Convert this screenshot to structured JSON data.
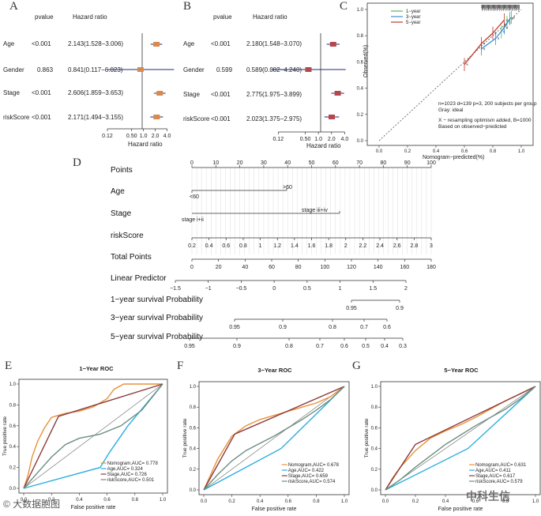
{
  "panels": {
    "A": "A",
    "B": "B",
    "C": "C",
    "D": "D",
    "E": "E",
    "F": "F",
    "G": "G"
  },
  "forest": {
    "pvalue_header": "pvalue",
    "hr_header": "Hazard ratio",
    "xlabel": "Hazard ratio",
    "ticks": [
      "0.12",
      "0.50",
      "1.0",
      "2.0",
      "4.0"
    ],
    "A": {
      "color": "#d9894e",
      "rows": [
        {
          "name": "Age",
          "p": "<0.001",
          "hr": "2.143(1.528−3.006)",
          "est": 2.143,
          "lo": 1.528,
          "hi": 3.006
        },
        {
          "name": "Gender",
          "p": "0.863",
          "hr": "0.841(0.117−6.023)",
          "est": 0.841,
          "lo": 0.117,
          "hi": 6.023
        },
        {
          "name": "Stage",
          "p": "<0.001",
          "hr": "2.606(1.859−3.653)",
          "est": 2.606,
          "lo": 1.859,
          "hi": 3.653
        },
        {
          "name": "riskScore",
          "p": "<0.001",
          "hr": "2.171(1.494−3.155)",
          "est": 2.171,
          "lo": 1.494,
          "hi": 3.155
        }
      ]
    },
    "B": {
      "color": "#b5474d",
      "rows": [
        {
          "name": "Age",
          "p": "<0.001",
          "hr": "2.180(1.548−3.070)",
          "est": 2.18,
          "lo": 1.548,
          "hi": 3.07
        },
        {
          "name": "Gender",
          "p": "0.599",
          "hr": "0.589(0.082−4.240)",
          "est": 0.589,
          "lo": 0.082,
          "hi": 4.24
        },
        {
          "name": "Stage",
          "p": "<0.001",
          "hr": "2.775(1.975−3.899)",
          "est": 2.775,
          "lo": 1.975,
          "hi": 3.899
        },
        {
          "name": "riskScore",
          "p": "<0.001",
          "hr": "2.023(1.375−2.975)",
          "est": 2.023,
          "lo": 1.375,
          "hi": 2.975
        }
      ]
    }
  },
  "calibration": {
    "xlabel": "Nomogram−predicted(%)",
    "ylabel": "Observed(%)",
    "xticks": [
      "0.0",
      "0.2",
      "0.4",
      "0.6",
      "0.8",
      "1.0"
    ],
    "yticks": [
      "0.0",
      "0.2",
      "0.4",
      "0.6",
      "0.8",
      "1.0"
    ],
    "legend": [
      {
        "label": "1−year",
        "color": "#5ab84f"
      },
      {
        "label": "3−year",
        "color": "#3a8fd8"
      },
      {
        "label": "5−year",
        "color": "#c0392b"
      }
    ],
    "note1": "n=1023 d=139 p=3, 200 subjects per group",
    "note2": "Gray: ideal",
    "note3": "X − resampling optimism added, B=1000",
    "note4": "Based on observed−predicted"
  },
  "nomogram": {
    "rows": [
      {
        "label": "Points",
        "ticks": [
          "0",
          "10",
          "20",
          "30",
          "40",
          "50",
          "60",
          "70",
          "80",
          "90",
          "100"
        ]
      },
      {
        "label": "Age",
        "levels": [
          ">60",
          "<60"
        ]
      },
      {
        "label": "Stage",
        "levels": [
          "stage iii+iv",
          "stage i+ii"
        ]
      },
      {
        "label": "riskScore",
        "ticks": [
          "0.2",
          "0.4",
          "0.6",
          "0.8",
          "1",
          "1.2",
          "1.4",
          "1.6",
          "1.8",
          "2",
          "2.2",
          "2.4",
          "2.6",
          "2.8",
          "3"
        ]
      },
      {
        "label": "Total Points",
        "ticks": [
          "0",
          "20",
          "40",
          "60",
          "80",
          "100",
          "120",
          "140",
          "160",
          "180"
        ]
      },
      {
        "label": "Linear Predictor",
        "ticks": [
          "−1.5",
          "−1",
          "−0.5",
          "0",
          "0.5",
          "1",
          "1.5",
          "2"
        ]
      },
      {
        "label": "1−year survival Probability",
        "ticks": [
          "0.95",
          "0.9"
        ]
      },
      {
        "label": "3−year survival Probability",
        "ticks": [
          "0.95",
          "0.9",
          "0.8",
          "0.7",
          "0.6"
        ]
      },
      {
        "label": "5−year survival Probability",
        "ticks": [
          "0.95",
          "0.9",
          "0.8",
          "0.7",
          "0.6",
          "0.5",
          "0.4",
          "0.3"
        ]
      }
    ]
  },
  "chart_data": [
    {
      "type": "line",
      "title": "1−Year ROC",
      "xlabel": "False positive rate",
      "ylabel": "True positive rate",
      "xlim": [
        0,
        1
      ],
      "ylim": [
        0,
        1
      ],
      "ticks": [
        "0.0",
        "0.2",
        "0.4",
        "0.6",
        "0.8",
        "1.0"
      ],
      "series": [
        {
          "name": "Nomogram,AUC= 0.778",
          "color": "#e8913a",
          "x": [
            0,
            0.03,
            0.06,
            0.1,
            0.15,
            0.2,
            0.25,
            0.3,
            0.4,
            0.5,
            0.6,
            0.65,
            0.72,
            0.85,
            1
          ],
          "y": [
            0,
            0.12,
            0.3,
            0.45,
            0.58,
            0.68,
            0.7,
            0.72,
            0.74,
            0.78,
            0.86,
            0.95,
            1,
            1,
            1
          ]
        },
        {
          "name": "Age,AUC= 0.324",
          "color": "#2aaee0",
          "x": [
            0,
            0.55,
            0.62,
            0.75,
            1
          ],
          "y": [
            0,
            0.2,
            0.35,
            0.6,
            1
          ]
        },
        {
          "name": "Stage,AUC= 0.726",
          "color": "#8b3a3a",
          "x": [
            0,
            0.25,
            1
          ],
          "y": [
            0,
            0.69,
            1
          ]
        },
        {
          "name": "riskScore,AUC= 0.501",
          "color": "#6b8e7f",
          "x": [
            0,
            0.1,
            0.2,
            0.3,
            0.4,
            0.55,
            0.7,
            0.85,
            1
          ],
          "y": [
            0,
            0.15,
            0.3,
            0.42,
            0.48,
            0.52,
            0.6,
            0.75,
            1
          ]
        }
      ]
    },
    {
      "type": "line",
      "title": "3−Year ROC",
      "xlabel": "False positive rate",
      "ylabel": "True positive rate",
      "xlim": [
        0,
        1
      ],
      "ylim": [
        0,
        1
      ],
      "ticks": [
        "0.0",
        "0.2",
        "0.4",
        "0.6",
        "0.8",
        "1.0"
      ],
      "series": [
        {
          "name": "Nomogram,AUC= 0.678",
          "color": "#e8913a",
          "x": [
            0,
            0.05,
            0.1,
            0.2,
            0.3,
            0.4,
            0.5,
            0.6,
            0.7,
            0.8,
            0.9,
            1
          ],
          "y": [
            0,
            0.15,
            0.3,
            0.52,
            0.62,
            0.68,
            0.72,
            0.76,
            0.8,
            0.84,
            0.9,
            1
          ]
        },
        {
          "name": "Age,AUC= 0.422",
          "color": "#2aaee0",
          "x": [
            0,
            0.55,
            0.7,
            0.85,
            1
          ],
          "y": [
            0,
            0.4,
            0.6,
            0.8,
            1
          ]
        },
        {
          "name": "Stage,AUC= 0.659",
          "color": "#8b3a3a",
          "x": [
            0,
            0.22,
            1
          ],
          "y": [
            0,
            0.54,
            1
          ]
        },
        {
          "name": "riskScore,AUC= 0.574",
          "color": "#6b8e7f",
          "x": [
            0,
            0.1,
            0.2,
            0.3,
            0.4,
            0.5,
            0.6,
            0.7,
            0.8,
            0.9,
            1
          ],
          "y": [
            0,
            0.15,
            0.28,
            0.38,
            0.45,
            0.52,
            0.6,
            0.68,
            0.77,
            0.87,
            1
          ]
        }
      ]
    },
    {
      "type": "line",
      "title": "5−Year ROC",
      "xlabel": "False positive rate",
      "ylabel": "True positive rate",
      "xlim": [
        0,
        1
      ],
      "ylim": [
        0,
        1
      ],
      "ticks": [
        "0.0",
        "0.2",
        "0.4",
        "0.6",
        "0.8",
        "1.0"
      ],
      "series": [
        {
          "name": "Nomogram,AUC= 0.631",
          "color": "#e8913a",
          "x": [
            0,
            0.05,
            0.1,
            0.2,
            0.3,
            0.4,
            0.5,
            0.6,
            0.7,
            0.8,
            0.9,
            1
          ],
          "y": [
            0,
            0.12,
            0.22,
            0.38,
            0.5,
            0.57,
            0.63,
            0.7,
            0.78,
            0.86,
            0.93,
            1
          ]
        },
        {
          "name": "Age,AUC= 0.411",
          "color": "#2aaee0",
          "x": [
            0,
            0.55,
            0.7,
            0.85,
            1
          ],
          "y": [
            0,
            0.4,
            0.6,
            0.8,
            1
          ]
        },
        {
          "name": "Stage,AUC= 0.617",
          "color": "#8b3a3a",
          "x": [
            0,
            0.2,
            1
          ],
          "y": [
            0,
            0.44,
            1
          ]
        },
        {
          "name": "riskScore,AUC= 0.579",
          "color": "#6b8e7f",
          "x": [
            0,
            0.1,
            0.2,
            0.3,
            0.4,
            0.5,
            0.6,
            0.7,
            0.8,
            0.9,
            1
          ],
          "y": [
            0,
            0.1,
            0.22,
            0.33,
            0.44,
            0.53,
            0.62,
            0.7,
            0.78,
            0.88,
            1
          ]
        }
      ]
    }
  ],
  "watermarks": {
    "left": "© 大数据胞图",
    "right": "中科生信"
  }
}
